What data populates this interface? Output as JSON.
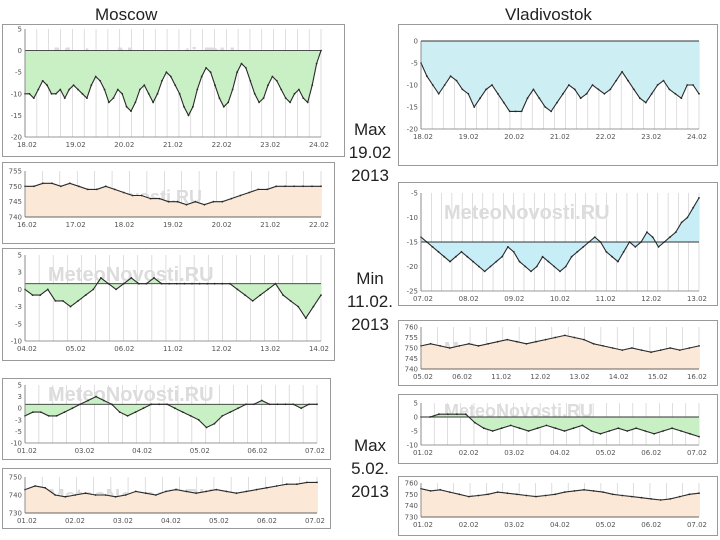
{
  "watermark": "MeteoNovosti.RU",
  "colors": {
    "temp_fill_moscow": "#c9efc4",
    "temp_fill_vlad_top": "#cdeff4",
    "temp_fill_vlad_mid": "#c7eef7",
    "temp_fill_vlad_bottom": "#c9efc4",
    "press_fill": "#fbe8d6",
    "line": "#2a2a2a",
    "grid": "#c8c8c8"
  },
  "labels": {
    "moscow": "Moscow",
    "vladivostok": "Vladivostok",
    "captions": [
      {
        "l1": "Max",
        "l2": "19.02",
        "l3": "2013"
      },
      {
        "l1": "Min",
        "l2": "11.02.",
        "l3": "2013"
      },
      {
        "l1": "Max",
        "l2": "5.02.",
        "l3": "2013"
      }
    ]
  },
  "chart_data": [
    {
      "id": "moscow-top-temp",
      "type": "area",
      "title": "Moscow temperature",
      "ylim": [
        -20,
        5
      ],
      "yticks": [
        "5",
        "0",
        "-5",
        "-10",
        "-15",
        "-20"
      ],
      "baseline": 0,
      "xticks": [
        "18.02",
        "19.02",
        "20.02",
        "21.02",
        "22.02",
        "23.02",
        "24.02"
      ],
      "values": [
        -10,
        -10,
        -11,
        -9,
        -7,
        -8,
        -10,
        -10,
        -9,
        -11,
        -9,
        -8,
        -9,
        -10,
        -11,
        -8,
        -6,
        -7,
        -9,
        -12,
        -11,
        -9,
        -10,
        -13,
        -14,
        -12,
        -9,
        -8,
        -10,
        -12,
        -10,
        -7,
        -5,
        -6,
        -8,
        -10,
        -13,
        -15,
        -13,
        -9,
        -6,
        -4,
        -5,
        -8,
        -11,
        -13,
        -12,
        -9,
        -5,
        -3,
        -4,
        -7,
        -10,
        -12,
        -11,
        -8,
        -6,
        -7,
        -9,
        -11,
        -12,
        -10,
        -9,
        -11,
        -12,
        -8,
        -3,
        0
      ]
    },
    {
      "id": "moscow-top-press",
      "type": "area",
      "title": "Moscow pressure",
      "ylim": [
        740,
        755
      ],
      "yticks": [
        "755",
        "750",
        "745",
        "740"
      ],
      "baseline": 740,
      "xticks": [
        "16.02",
        "17.02",
        "18.02",
        "19.02",
        "20.02",
        "21.02",
        "22.02"
      ],
      "values": [
        750,
        750,
        751,
        751,
        750,
        751,
        750,
        749,
        749,
        750,
        749,
        748,
        747,
        747,
        746,
        746,
        745,
        745,
        744,
        745,
        744,
        745,
        745,
        746,
        747,
        748,
        749,
        749,
        750,
        750,
        750,
        750,
        750,
        750
      ]
    },
    {
      "id": "moscow-mid-temp",
      "type": "area",
      "title": "Moscow temperature",
      "ylim": [
        -10,
        5
      ],
      "yticks": [
        "5",
        "3",
        "0",
        "-3",
        "-5",
        "-10"
      ],
      "baseline": 0,
      "xticks": [
        "04.02",
        "05.02",
        "06.02",
        "11.02",
        "12.02",
        "13.02",
        "14.02"
      ],
      "values": [
        -1,
        -2,
        -2,
        -1,
        -3,
        -3,
        -4,
        -3,
        -2,
        -1,
        1,
        0,
        -1,
        0,
        1,
        0,
        0,
        1,
        0,
        0,
        0,
        0,
        0,
        0,
        0,
        0,
        0,
        0,
        -1,
        -2,
        -3,
        -2,
        -1,
        0,
        -2,
        -3,
        -4,
        -6,
        -4,
        -2
      ]
    },
    {
      "id": "moscow-bottom-temp",
      "type": "area",
      "title": "Moscow temperature",
      "ylim": [
        -10,
        5
      ],
      "yticks": [
        "5",
        "3",
        "0",
        "-3",
        "-5",
        "-10"
      ],
      "baseline": 0,
      "xticks": [
        "01.02",
        "03.02",
        "04.02",
        "05.02",
        "06.02",
        "07.02"
      ],
      "values": [
        -3,
        -2,
        -2,
        -3,
        -3,
        -2,
        -1,
        0,
        1,
        2,
        1,
        0,
        -2,
        -3,
        -2,
        -1,
        0,
        0,
        0,
        -1,
        -2,
        -3,
        -4,
        -6,
        -5,
        -3,
        -2,
        -1,
        0,
        0,
        1,
        0,
        0,
        0,
        0,
        -1,
        0,
        0
      ]
    },
    {
      "id": "moscow-bottom-press",
      "type": "area",
      "title": "Moscow pressure",
      "ylim": [
        730,
        750
      ],
      "yticks": [
        "750",
        "740",
        "730"
      ],
      "baseline": 730,
      "xticks": [
        "01.02",
        "02.02",
        "03.02",
        "04.02",
        "05.02",
        "06.02",
        "07.02"
      ],
      "values": [
        743,
        745,
        744,
        740,
        739,
        740,
        741,
        740,
        740,
        739,
        740,
        742,
        741,
        740,
        742,
        743,
        742,
        741,
        742,
        743,
        742,
        741,
        742,
        743,
        744,
        745,
        746,
        746,
        747,
        747
      ]
    },
    {
      "id": "vlad-top-temp",
      "type": "area",
      "title": "Vladivostok temperature",
      "ylim": [
        -20,
        0
      ],
      "yticks": [
        "0",
        "-5",
        "-10",
        "-15",
        "-20"
      ],
      "baseline": 0,
      "xticks": [
        "18.02",
        "19.02",
        "20.02",
        "21.02",
        "22.02",
        "23.02",
        "24.02"
      ],
      "values": [
        -5,
        -8,
        -10,
        -12,
        -10,
        -8,
        -9,
        -11,
        -12,
        -15,
        -13,
        -11,
        -10,
        -12,
        -14,
        -16,
        -16,
        -16,
        -13,
        -11,
        -13,
        -15,
        -16,
        -14,
        -12,
        -10,
        -11,
        -13,
        -12,
        -10,
        -11,
        -12,
        -11,
        -9,
        -7,
        -9,
        -11,
        -13,
        -14,
        -12,
        -10,
        -9,
        -11,
        -12,
        -13,
        -10,
        -10,
        -12
      ]
    },
    {
      "id": "vlad-mid-temp",
      "type": "area",
      "title": "Vladivostok temperature",
      "ylim": [
        -25,
        -5
      ],
      "yticks": [
        "-5",
        "-10",
        "-15",
        "-20",
        "-25"
      ],
      "baseline": -15,
      "xticks": [
        "07.02",
        "08.02",
        "09.02",
        "10.02",
        "11.02",
        "12.02",
        "13.02"
      ],
      "values": [
        -14,
        -15,
        -16,
        -17,
        -18,
        -19,
        -18,
        -17,
        -18,
        -19,
        -20,
        -21,
        -20,
        -19,
        -18,
        -16,
        -17,
        -19,
        -20,
        -21,
        -20,
        -18,
        -19,
        -20,
        -21,
        -20,
        -18,
        -17,
        -16,
        -15,
        -14,
        -15,
        -17,
        -18,
        -19,
        -17,
        -15,
        -16,
        -15,
        -13,
        -14,
        -16,
        -15,
        -14,
        -13,
        -11,
        -10,
        -8,
        -6
      ]
    },
    {
      "id": "vlad-mid-press",
      "type": "area",
      "title": "Vladivostok pressure",
      "ylim": [
        740,
        760
      ],
      "yticks": [
        "760",
        "755",
        "750",
        "745",
        "740"
      ],
      "baseline": 740,
      "xticks": [
        "05.02",
        "06.02",
        "11.02",
        "12.02",
        "13.02",
        "14.02",
        "15.02",
        "16.02"
      ],
      "values": [
        751,
        752,
        751,
        750,
        751,
        752,
        751,
        752,
        753,
        754,
        753,
        752,
        753,
        754,
        755,
        756,
        755,
        754,
        752,
        751,
        750,
        749,
        750,
        749,
        748,
        749,
        750,
        749,
        750,
        751
      ]
    },
    {
      "id": "vlad-bottom-temp",
      "type": "area",
      "title": "Vladivostok temperature",
      "ylim": [
        -10,
        5
      ],
      "yticks": [
        "5",
        "0",
        "-5",
        "-10"
      ],
      "baseline": 0,
      "xticks": [
        "01.02",
        "02.02",
        "03.02",
        "04.02",
        "05.02",
        "06.02",
        "07.02"
      ],
      "values": [
        0,
        0,
        1,
        1,
        1,
        1,
        -2,
        -4,
        -5,
        -4,
        -3,
        -4,
        -5,
        -4,
        -3,
        -4,
        -5,
        -4,
        -3,
        -5,
        -6,
        -5,
        -4,
        -5,
        -4,
        -5,
        -6,
        -5,
        -4,
        -5,
        -6,
        -7
      ]
    },
    {
      "id": "vlad-bottom-press",
      "type": "area",
      "title": "Vladivostok pressure",
      "ylim": [
        730,
        760
      ],
      "yticks": [
        "760",
        "750",
        "740",
        "730"
      ],
      "baseline": 730,
      "xticks": [
        "01.02",
        "02.02",
        "03.02",
        "04.02",
        "05.02",
        "06.02",
        "07.02"
      ],
      "values": [
        755,
        753,
        754,
        752,
        750,
        748,
        749,
        750,
        752,
        751,
        750,
        749,
        748,
        749,
        750,
        752,
        753,
        754,
        753,
        752,
        750,
        749,
        748,
        747,
        746,
        745,
        746,
        748,
        750,
        751
      ]
    }
  ]
}
